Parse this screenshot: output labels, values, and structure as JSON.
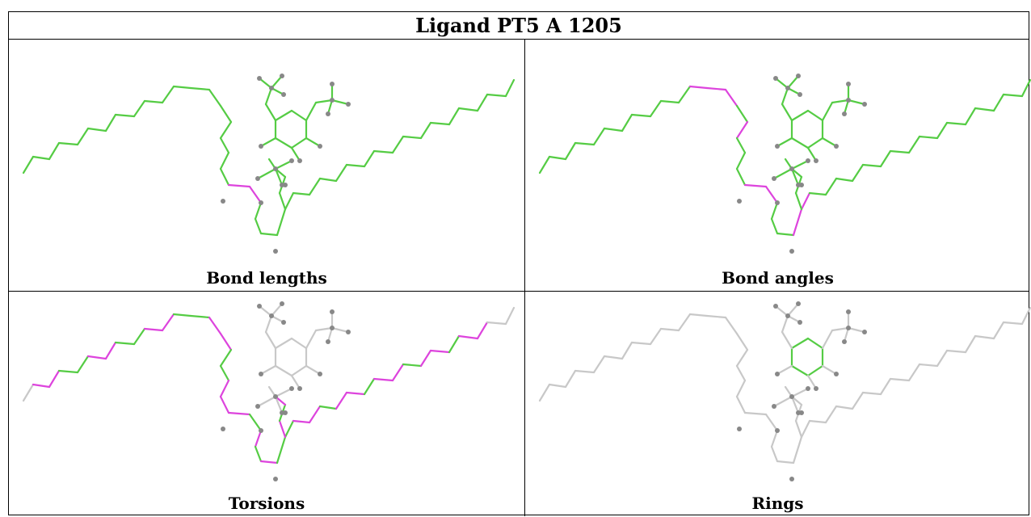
{
  "title": "Ligand PT5 A 1205",
  "panels": [
    {
      "caption": "Bond lengths"
    },
    {
      "caption": "Bond angles"
    },
    {
      "caption": "Torsions"
    },
    {
      "caption": "Rings"
    }
  ],
  "colors": {
    "normal": "#55cc44",
    "outlier": "#dd44dd",
    "unassessed": "#c8c8c8",
    "atom": "#888888",
    "border": "#000000"
  }
}
